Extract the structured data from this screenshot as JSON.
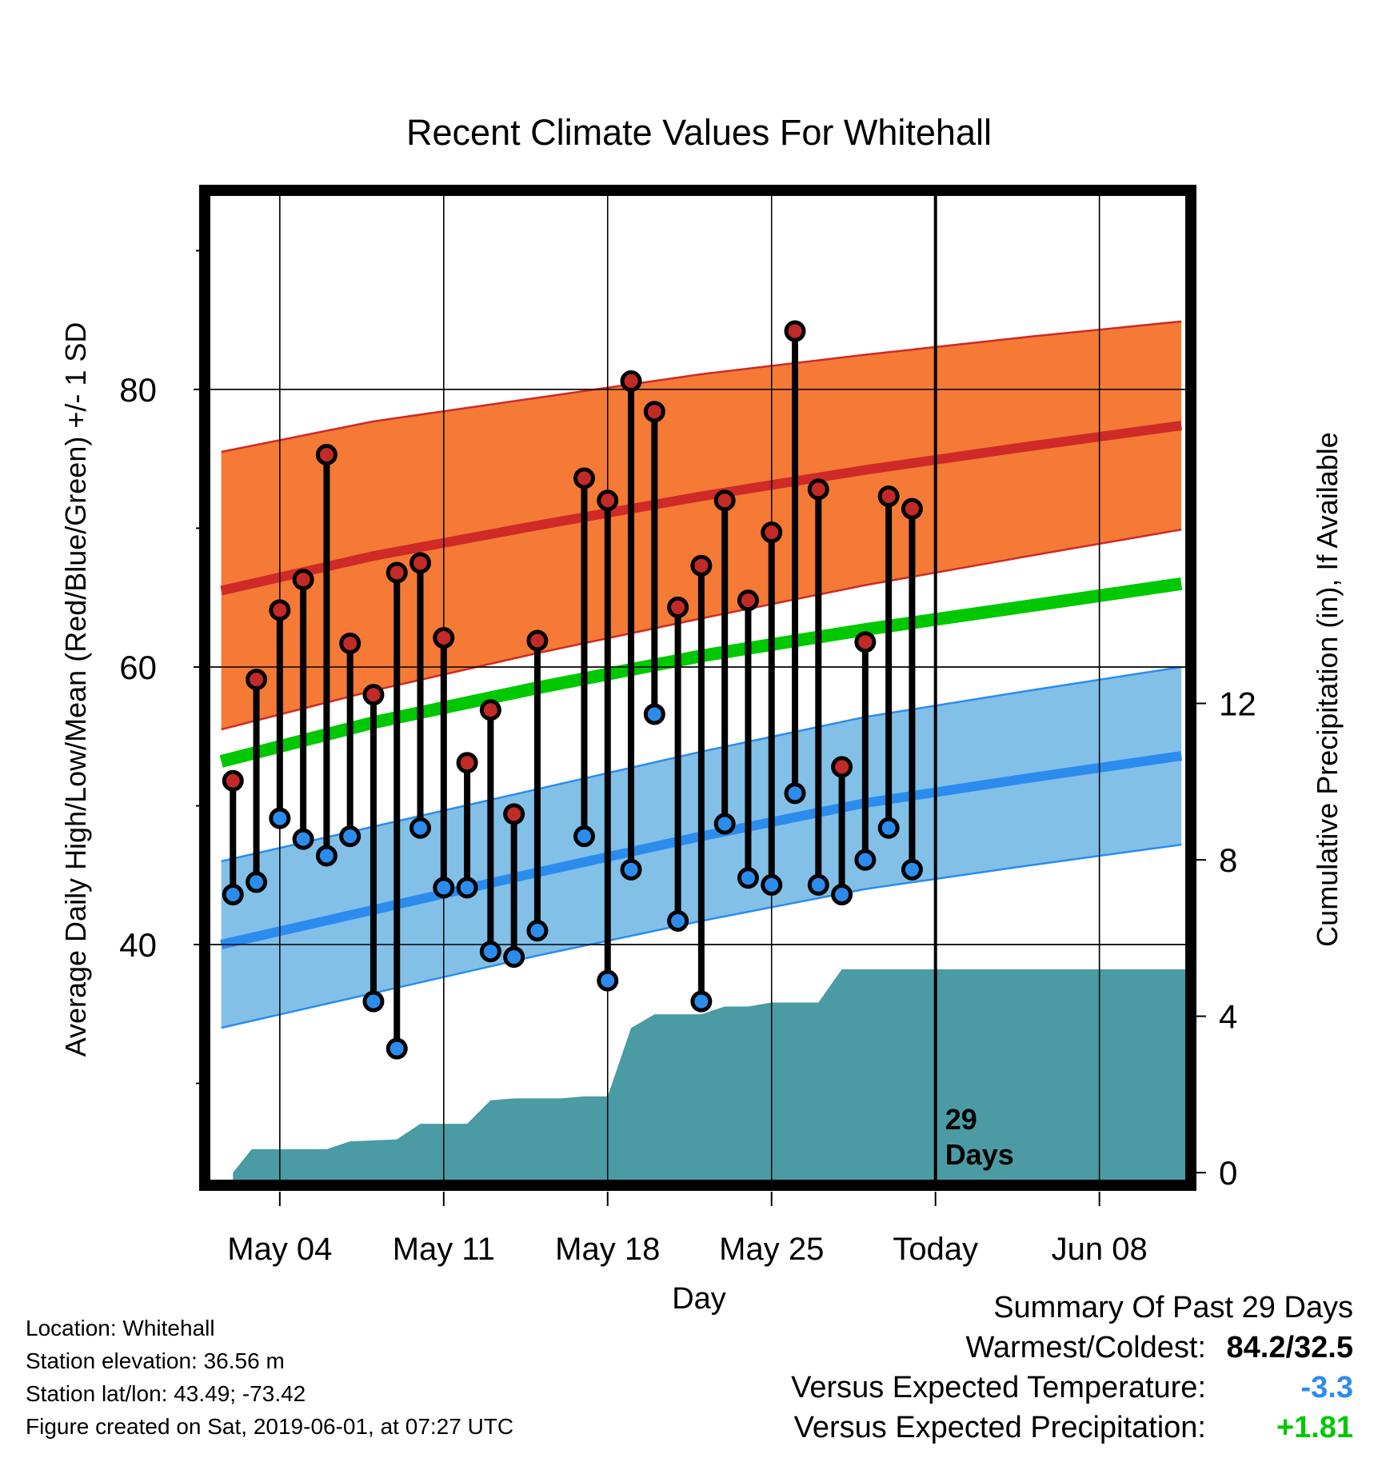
{
  "chart_data": {
    "type": "line",
    "title": "Recent Climate Values For Whitehall",
    "xlabel": "Day",
    "ylabel_left": "Average Daily High/Low/Mean (Red/Blue/Green) +/- 1 SD",
    "ylabel_right": "Cumulative Precipitation (in), If Available",
    "x_tick_labels": [
      "May 04",
      "May 11",
      "May 18",
      "May 25",
      "Today",
      "Jun 08"
    ],
    "x_tick_days": [
      3,
      10,
      17,
      24,
      31,
      38
    ],
    "xlim_days": [
      0,
      41.7
    ],
    "ylim_left": [
      23,
      94
    ],
    "left_ticks": [
      40,
      60,
      80
    ],
    "left_minor_ticks": [
      30,
      50,
      70,
      90
    ],
    "ylim_right": [
      -0.2,
      25.0
    ],
    "right_ticks": [
      0,
      4,
      8,
      12
    ],
    "today_day": 31,
    "today_label_line1": "29",
    "today_label_line2": "Days",
    "grid": true,
    "colors": {
      "high_band": "#f47a35",
      "high_line": "#cf2a27",
      "low_band": "#82c0e8",
      "low_line": "#2b8cee",
      "mean_line": "#00c800",
      "precip": "#4a9ba3",
      "high_marker": "#c12a27",
      "low_marker": "#2b8cee"
    },
    "normals": [
      {
        "day": 0.5,
        "high": 65.5,
        "high_sd": 10.0,
        "low": 40.0,
        "low_sd": 6.0,
        "mean": 53.2
      },
      {
        "day": 7,
        "high": 68.0,
        "high_sd": 9.7,
        "low": 42.5,
        "low_sd": 6.0,
        "mean": 56.0
      },
      {
        "day": 14,
        "high": 70.2,
        "high_sd": 9.2,
        "low": 45.2,
        "low_sd": 6.0,
        "mean": 58.5
      },
      {
        "day": 21,
        "high": 72.3,
        "high_sd": 8.8,
        "low": 47.8,
        "low_sd": 6.1,
        "mean": 60.8
      },
      {
        "day": 28,
        "high": 74.2,
        "high_sd": 8.3,
        "low": 50.2,
        "low_sd": 6.2,
        "mean": 62.7
      },
      {
        "day": 35,
        "high": 75.9,
        "high_sd": 7.9,
        "low": 52.0,
        "low_sd": 6.3,
        "mean": 64.4
      },
      {
        "day": 41.5,
        "high": 77.4,
        "high_sd": 7.5,
        "low": 53.6,
        "low_sd": 6.4,
        "mean": 66.0
      }
    ],
    "daily": [
      {
        "day": 1,
        "high": 51.8,
        "low": 43.6
      },
      {
        "day": 2,
        "high": 59.1,
        "low": 44.5
      },
      {
        "day": 3,
        "high": 64.1,
        "low": 49.1
      },
      {
        "day": 4,
        "high": 66.3,
        "low": 47.6
      },
      {
        "day": 5,
        "high": 75.3,
        "low": 46.4
      },
      {
        "day": 6,
        "high": 61.7,
        "low": 47.8
      },
      {
        "day": 7,
        "high": 58.0,
        "low": 35.9
      },
      {
        "day": 8,
        "high": 66.8,
        "low": 32.5
      },
      {
        "day": 9,
        "high": 67.5,
        "low": 48.4
      },
      {
        "day": 10,
        "high": 62.1,
        "low": 44.1
      },
      {
        "day": 11,
        "high": 53.1,
        "low": 44.1
      },
      {
        "day": 12,
        "high": 56.9,
        "low": 39.5
      },
      {
        "day": 13,
        "high": 49.4,
        "low": 39.1
      },
      {
        "day": 14,
        "high": 61.9,
        "low": 41.0
      },
      {
        "day": 16,
        "high": 73.6,
        "low": 47.8
      },
      {
        "day": 17,
        "high": 72.0,
        "low": 37.4
      },
      {
        "day": 18,
        "high": 80.6,
        "low": 45.4
      },
      {
        "day": 19,
        "high": 78.4,
        "low": 56.6
      },
      {
        "day": 20,
        "high": 64.3,
        "low": 41.7
      },
      {
        "day": 21,
        "high": 67.3,
        "low": 35.9
      },
      {
        "day": 22,
        "high": 72.0,
        "low": 48.7
      },
      {
        "day": 23,
        "high": 64.8,
        "low": 44.8
      },
      {
        "day": 24,
        "high": 69.7,
        "low": 44.3
      },
      {
        "day": 25,
        "high": 84.2,
        "low": 50.9
      },
      {
        "day": 26,
        "high": 72.8,
        "low": 44.3
      },
      {
        "day": 27,
        "high": 52.8,
        "low": 43.6
      },
      {
        "day": 28,
        "high": 61.8,
        "low": 46.1
      },
      {
        "day": 29,
        "high": 72.3,
        "low": 48.4
      },
      {
        "day": 30,
        "high": 71.4,
        "low": 45.4
      }
    ],
    "precip_cumulative": [
      {
        "day": 1.0,
        "value": 0.0
      },
      {
        "day": 1.8,
        "value": 0.6
      },
      {
        "day": 5.0,
        "value": 0.6
      },
      {
        "day": 6.0,
        "value": 0.8
      },
      {
        "day": 8.0,
        "value": 0.85
      },
      {
        "day": 9.0,
        "value": 1.25
      },
      {
        "day": 11.0,
        "value": 1.25
      },
      {
        "day": 12.0,
        "value": 1.85
      },
      {
        "day": 13.0,
        "value": 1.9
      },
      {
        "day": 15.0,
        "value": 1.9
      },
      {
        "day": 16.0,
        "value": 1.95
      },
      {
        "day": 17.0,
        "value": 1.95
      },
      {
        "day": 18.0,
        "value": 3.7
      },
      {
        "day": 19.0,
        "value": 4.05
      },
      {
        "day": 21.0,
        "value": 4.05
      },
      {
        "day": 22.0,
        "value": 4.25
      },
      {
        "day": 23.0,
        "value": 4.25
      },
      {
        "day": 24.0,
        "value": 4.35
      },
      {
        "day": 26.0,
        "value": 4.35
      },
      {
        "day": 27.0,
        "value": 5.2
      },
      {
        "day": 41.7,
        "value": 5.2
      }
    ]
  },
  "info": {
    "location": "Location: Whitehall",
    "elevation": "Station elevation: 36.56 m",
    "latlon": "Station lat/lon: 43.49; -73.42",
    "created": "Figure created on Sat, 2019-06-01, at 07:27 UTC"
  },
  "summary": {
    "title": "Summary Of Past 29 Days",
    "warmest_coldest_label": "Warmest/Coldest:",
    "warmest_coldest_value": "84.2/32.5",
    "temp_label": "Versus Expected Temperature:",
    "temp_value": "-3.3",
    "temp_color": "#2b8cee",
    "precip_label": "Versus Expected Precipitation:",
    "precip_value": "+1.81",
    "precip_color": "#00c800"
  }
}
